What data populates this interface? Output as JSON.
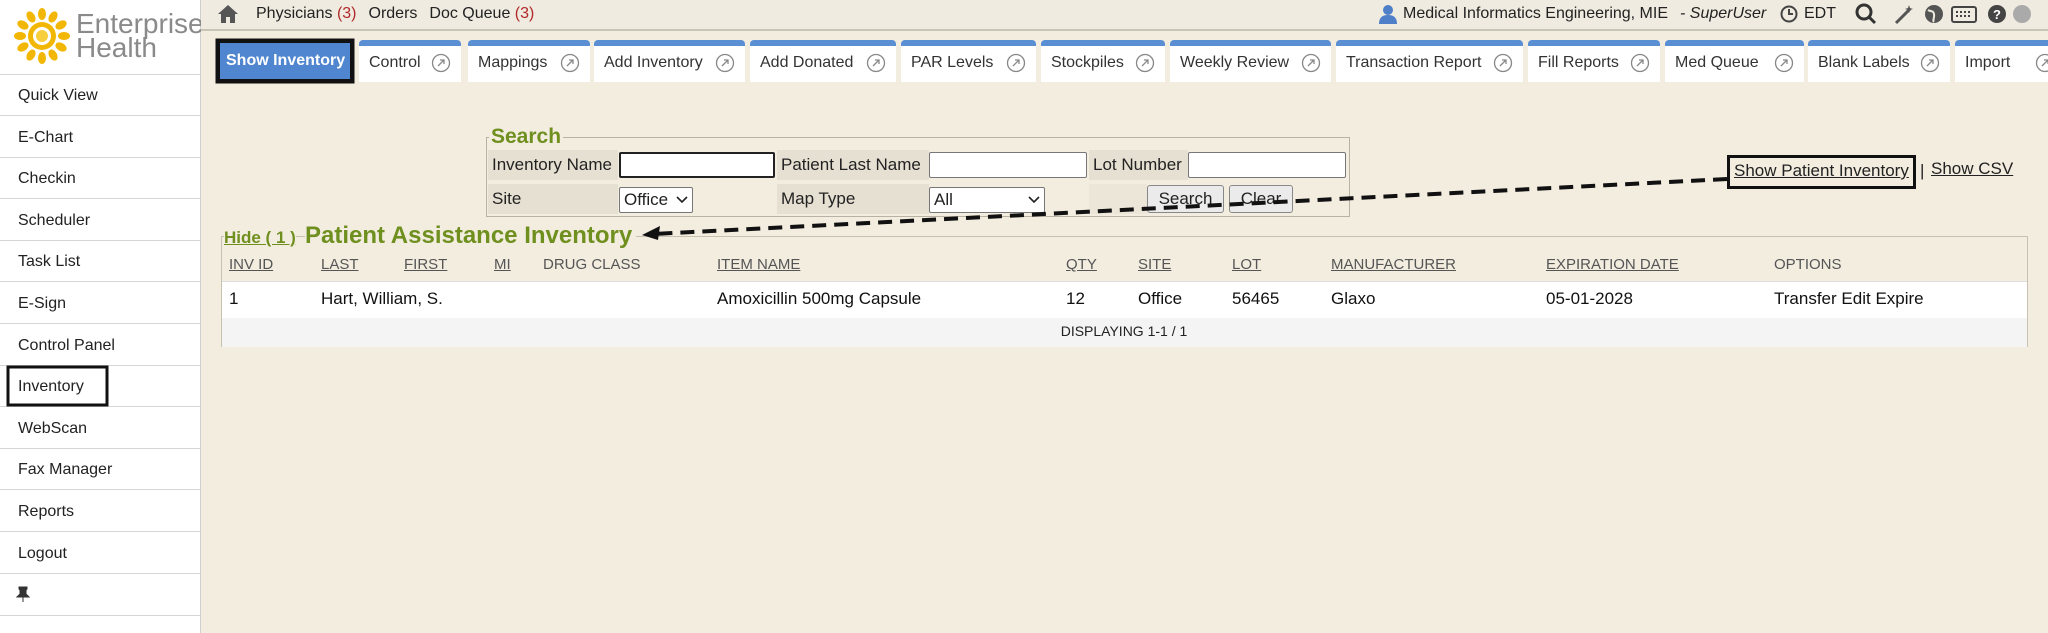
{
  "logo": {
    "line1": "Enterprise",
    "line2": "Health"
  },
  "sidebar": {
    "items": [
      "Quick View",
      "E-Chart",
      "Checkin",
      "Scheduler",
      "Task List",
      "E-Sign",
      "Control Panel",
      "Inventory",
      "WebScan",
      "Fax Manager",
      "Reports",
      "Logout"
    ],
    "highlighted": 7
  },
  "topbar": {
    "links": [
      {
        "label": "Physicians",
        "count": "(3)"
      },
      {
        "label": "Orders"
      },
      {
        "label": "Doc Queue",
        "count": "(3)"
      }
    ],
    "user": "Medical Informatics Engineering, MIE",
    "role": "- SuperUser",
    "timezone": "EDT"
  },
  "tabs": [
    {
      "label": "Show Inventory",
      "selected": true
    },
    {
      "label": "Control"
    },
    {
      "label": "Mappings"
    },
    {
      "label": "Add Inventory"
    },
    {
      "label": "Add Donated"
    },
    {
      "label": "PAR Levels"
    },
    {
      "label": "Stockpiles"
    },
    {
      "label": "Weekly Review"
    },
    {
      "label": "Transaction Report"
    },
    {
      "label": "Fill Reports"
    },
    {
      "label": "Med Queue"
    },
    {
      "label": "Blank Labels"
    },
    {
      "label": "Import"
    }
  ],
  "search": {
    "legend": "Search",
    "inventory_name": "Inventory Name",
    "patient_last_name": "Patient Last Name",
    "lot_number": "Lot Number",
    "site": "Site",
    "site_value": "Office",
    "map_type": "Map Type",
    "map_type_value": "All",
    "search_button": "Search",
    "clear_button": "Clear"
  },
  "links": {
    "show_patient_inventory": "Show Patient Inventory",
    "separator": "|",
    "show_csv": "Show CSV"
  },
  "panel": {
    "hide": "Hide ( 1 )",
    "title": "Patient Assistance Inventory",
    "columns": [
      "INV ID",
      "LAST",
      "FIRST",
      "MI",
      "DRUG CLASS",
      "ITEM NAME",
      "QTY",
      "SITE",
      "LOT",
      "MANUFACTURER",
      "EXPIRATION DATE",
      "OPTIONS"
    ],
    "rows": [
      {
        "inv_id": "1",
        "last": "Hart, William, S.",
        "item_name": "Amoxicillin 500mg Capsule",
        "qty": "12",
        "site": "Office",
        "lot": "56465",
        "manufacturer": "Glaxo",
        "expiration_date": "05-01-2028",
        "options": [
          "Transfer",
          "Edit",
          "Expire"
        ]
      }
    ],
    "footer": "DISPLAYING 1-1 / 1"
  }
}
